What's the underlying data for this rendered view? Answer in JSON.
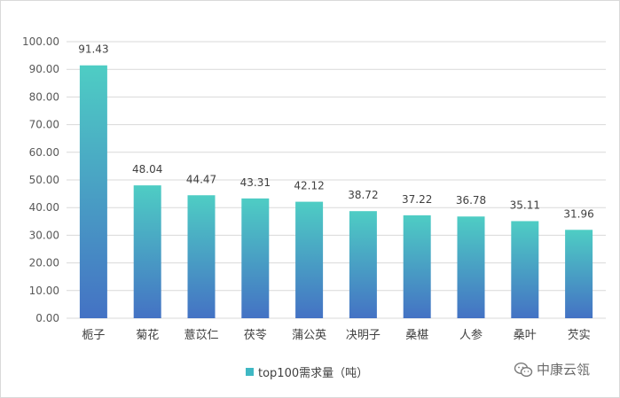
{
  "chart_data": {
    "type": "bar",
    "categories": [
      "栀子",
      "菊花",
      "薏苡仁",
      "茯苓",
      "蒲公英",
      "决明子",
      "桑椹",
      "人参",
      "桑叶",
      "芡实"
    ],
    "series": [
      {
        "name": "top100需求量（吨）",
        "values": [
          91.43,
          48.04,
          44.47,
          43.31,
          42.12,
          38.72,
          37.22,
          36.78,
          35.11,
          31.96
        ],
        "data_labels": [
          "91.43",
          "48.04",
          "44.47",
          "43.31",
          "42.12",
          "38.72",
          "37.22",
          "36.78",
          "35.11",
          "31.96"
        ]
      }
    ],
    "ylim": [
      0,
      100
    ],
    "yticks": [
      "0.00",
      "10.00",
      "20.00",
      "30.00",
      "40.00",
      "50.00",
      "60.00",
      "70.00",
      "80.00",
      "90.00",
      "100.00"
    ],
    "grid": true,
    "legend_position": "bottom",
    "colors": {
      "bar_top": "#4ecdc4",
      "bar_bottom": "#4472c4",
      "legend": "#3fb8c4"
    }
  },
  "watermark": {
    "text": "中康云瓴",
    "icon": "wechat-icon"
  }
}
